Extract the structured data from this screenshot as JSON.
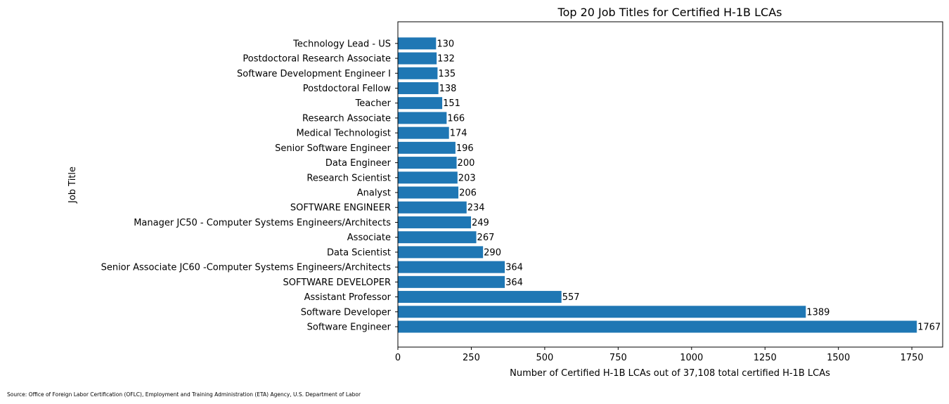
{
  "chart_data": {
    "type": "bar",
    "orientation": "horizontal",
    "title": "Top 20 Job Titles for Certified H-1B LCAs",
    "xlabel": "Number of Certified H-1B LCAs out of 37,108 total certified H-1B LCAs",
    "ylabel": "Job Title",
    "xlim": [
      0,
      1855
    ],
    "xticks": [
      0,
      250,
      500,
      750,
      1000,
      1250,
      1500,
      1750
    ],
    "grid": false,
    "bar_color": "#1f77b4",
    "categories": [
      "Software Engineer",
      "Software Developer",
      "Assistant Professor",
      "SOFTWARE DEVELOPER",
      "Senior Associate JC60 -Computer Systems Engineers/Architects",
      "Data Scientist",
      "Associate",
      "Manager JC50 - Computer Systems Engineers/Architects",
      "SOFTWARE ENGINEER",
      "Analyst",
      "Research Scientist",
      "Data Engineer",
      "Senior Software Engineer",
      "Medical Technologist",
      "Research Associate",
      "Teacher",
      "Postdoctoral Fellow",
      "Software Development Engineer I",
      "Postdoctoral Research Associate",
      "Technology Lead - US"
    ],
    "values": [
      1767,
      1389,
      557,
      364,
      364,
      290,
      267,
      249,
      234,
      206,
      203,
      200,
      196,
      174,
      166,
      151,
      138,
      135,
      132,
      130
    ]
  },
  "source_note": "Source: Office of Foreign Labor Certification (OFLC), Employment and Training Administration (ETA) Agency, U.S. Department of Labor"
}
